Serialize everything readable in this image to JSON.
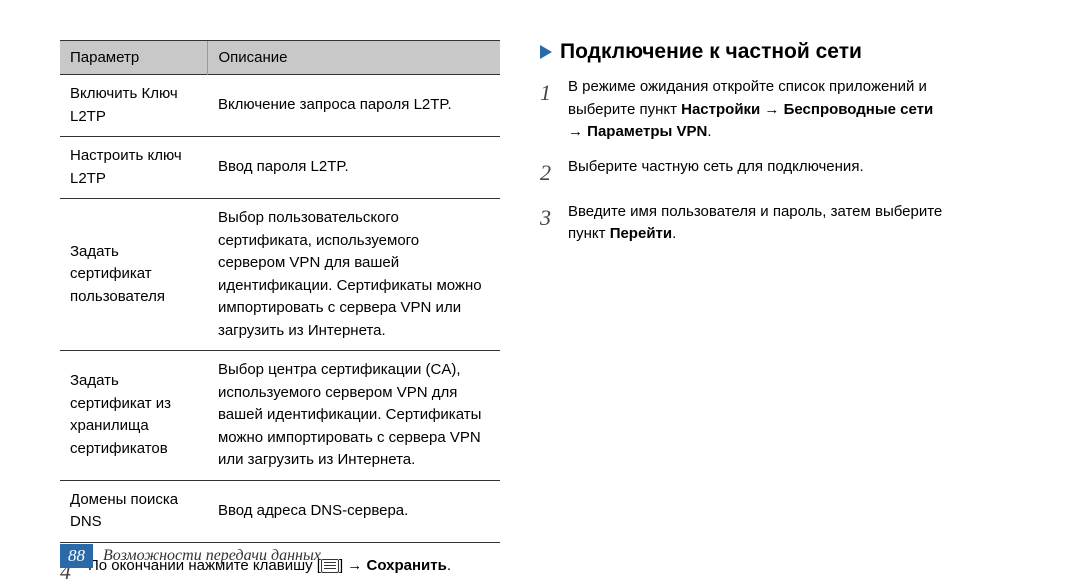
{
  "table": {
    "headers": {
      "param": "Параметр",
      "desc": "Описание"
    },
    "rows": [
      {
        "param": "Включить Ключ L2TP",
        "desc": "Включение запроса пароля L2TP."
      },
      {
        "param": "Настроить ключ L2TP",
        "desc": "Ввод пароля L2TP."
      },
      {
        "param": "Задать сертификат пользователя",
        "desc": "Выбор пользовательского сертификата, используемого сервером VPN для вашей идентификации. Сертификаты можно импортировать с сервера VPN или загрузить из Интернета."
      },
      {
        "param": "Задать сертификат из хранилища сертификатов",
        "desc": "Выбор центра сертификации (CA), используемого сервером VPN для вашей идентификации. Сертификаты можно импортировать с сервера VPN или загрузить из Интернета."
      },
      {
        "param": "Домены поиска DNS",
        "desc": "Ввод адреса DNS-сервера."
      }
    ]
  },
  "left_step": {
    "num": "4",
    "pre": "По окончании нажмите клавишу [",
    "post": "] → ",
    "bold": "Сохранить",
    "end": "."
  },
  "section": {
    "title": "Подключение к частной сети"
  },
  "steps": [
    {
      "num": "1",
      "line1": "В режиме ожидания откройте список приложений и",
      "line2_pre": "выберите пункт ",
      "bold1": "Настройки",
      "arrow1": " → ",
      "bold2": "Беспроводные сети",
      "line3_arrow": "→ ",
      "bold3": "Параметры VPN",
      "end": "."
    },
    {
      "num": "2",
      "text": "Выберите частную сеть для подключения."
    },
    {
      "num": "3",
      "line1": "Введите имя пользователя и пароль, затем выберите",
      "line2_pre": "пункт ",
      "bold": "Перейти",
      "end": "."
    }
  ],
  "footer": {
    "page": "88",
    "text": "Возможности передачи данных"
  }
}
